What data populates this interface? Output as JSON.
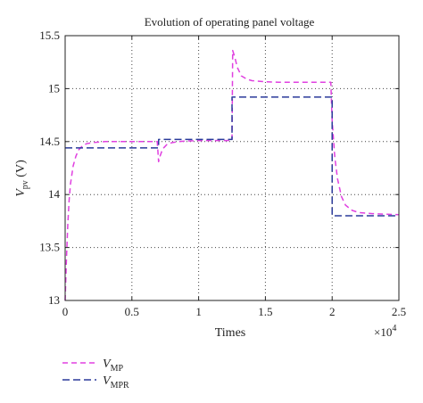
{
  "chart_data": {
    "type": "line",
    "title": "Evolution of operating panel voltage",
    "xlabel": "Times",
    "x_multiplier": "×10",
    "x_multiplier_exp": "4",
    "ylabel_main": "V",
    "ylabel_sub": "pv",
    "ylabel_unit": " (V)",
    "xlim": [
      0,
      25000
    ],
    "ylim": [
      13,
      15.5
    ],
    "x_ticks": [
      0,
      5000,
      10000,
      15000,
      20000,
      25000
    ],
    "x_tick_labels": [
      "0",
      "0.5",
      "1",
      "1.5",
      "2",
      "2.5"
    ],
    "y_ticks": [
      13,
      13.5,
      14,
      14.5,
      15,
      15.5
    ],
    "y_tick_labels": [
      "13",
      "13.5",
      "14",
      "14.5",
      "15",
      "15.5"
    ],
    "grid": true,
    "legend_position": "below-left",
    "series": [
      {
        "name_main": "V",
        "name_sub": "MP",
        "color": "#e040e0",
        "dash": "6 4",
        "x": [
          0,
          100,
          200,
          300,
          400,
          600,
          800,
          1000,
          1300,
          1600,
          2000,
          2500,
          3000,
          4000,
          5000,
          6000,
          6900,
          7000,
          7100,
          7300,
          7600,
          8000,
          8500,
          9000,
          10000,
          11000,
          12000,
          12500,
          12550,
          12700,
          12900,
          13200,
          13600,
          14000,
          14500,
          15000,
          16000,
          17000,
          18000,
          19000,
          19900,
          20000,
          20200,
          20400,
          20700,
          21000,
          21500,
          22000,
          23000,
          24000,
          25000
        ],
        "y": [
          13.0,
          13.4,
          13.72,
          13.95,
          14.1,
          14.27,
          14.36,
          14.42,
          14.46,
          14.48,
          14.49,
          14.495,
          14.5,
          14.5,
          14.5,
          14.5,
          14.5,
          14.31,
          14.36,
          14.43,
          14.47,
          14.49,
          14.5,
          14.505,
          14.51,
          14.51,
          14.51,
          14.51,
          15.36,
          15.3,
          15.2,
          15.12,
          15.09,
          15.075,
          15.07,
          15.065,
          15.06,
          15.06,
          15.06,
          15.06,
          15.06,
          14.7,
          14.35,
          14.15,
          13.98,
          13.9,
          13.85,
          13.83,
          13.82,
          13.815,
          13.81
        ]
      },
      {
        "name_main": "V",
        "name_sub": "MPR",
        "color": "#2a3a9a",
        "dash": "8 4",
        "x": [
          0,
          7000,
          7000,
          12500,
          12500,
          20000,
          20000,
          25000
        ],
        "y": [
          14.44,
          14.44,
          14.52,
          14.52,
          14.92,
          14.92,
          13.8,
          13.8
        ]
      }
    ]
  }
}
